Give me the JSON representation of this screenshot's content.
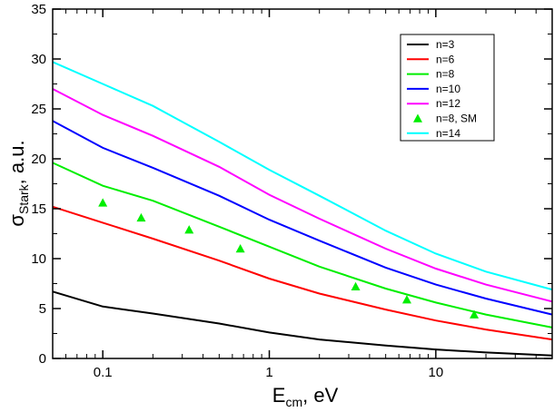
{
  "chart_data": {
    "type": "line",
    "title": "",
    "xlabel": {
      "main": "E",
      "sub": "cm",
      "suffix": ", eV"
    },
    "ylabel": {
      "main": "σ",
      "sub": "Stark",
      "suffix": ", a.u."
    },
    "xscale": "log",
    "xlim": [
      0.05,
      50
    ],
    "ylim": [
      0,
      35
    ],
    "xticks": [
      {
        "value": 0.1,
        "label": "0.1"
      },
      {
        "value": 1,
        "label": "1"
      },
      {
        "value": 10,
        "label": "10"
      }
    ],
    "yticks": [
      {
        "value": 0,
        "label": "0"
      },
      {
        "value": 5,
        "label": "5"
      },
      {
        "value": 10,
        "label": "10"
      },
      {
        "value": 15,
        "label": "15"
      },
      {
        "value": 20,
        "label": "20"
      },
      {
        "value": 25,
        "label": "25"
      },
      {
        "value": 30,
        "label": "30"
      },
      {
        "value": 35,
        "label": "35"
      }
    ],
    "grid": false,
    "legend_position": "top-right",
    "series": [
      {
        "name": "n=3",
        "color": "#000000",
        "kind": "line",
        "x": [
          0.05,
          0.1,
          0.2,
          0.5,
          1,
          2,
          5,
          10,
          20,
          50
        ],
        "y": [
          6.7,
          5.2,
          4.5,
          3.5,
          2.6,
          1.9,
          1.3,
          0.9,
          0.6,
          0.3
        ]
      },
      {
        "name": "n=6",
        "color": "#ff0000",
        "kind": "line",
        "x": [
          0.05,
          0.1,
          0.2,
          0.5,
          1,
          2,
          5,
          10,
          20,
          50
        ],
        "y": [
          15.2,
          13.6,
          12.0,
          9.8,
          8.0,
          6.5,
          4.9,
          3.8,
          2.9,
          1.9
        ]
      },
      {
        "name": "n=8",
        "color": "#00ee00",
        "kind": "line",
        "x": [
          0.05,
          0.1,
          0.2,
          0.5,
          1,
          2,
          5,
          10,
          20,
          50
        ],
        "y": [
          19.6,
          17.3,
          15.8,
          13.2,
          11.2,
          9.2,
          7.0,
          5.6,
          4.4,
          3.1
        ]
      },
      {
        "name": "n=10",
        "color": "#0000ff",
        "kind": "line",
        "x": [
          0.05,
          0.1,
          0.2,
          0.5,
          1,
          2,
          5,
          10,
          20,
          50
        ],
        "y": [
          23.8,
          21.1,
          19.1,
          16.3,
          13.9,
          11.8,
          9.1,
          7.4,
          6.0,
          4.4
        ]
      },
      {
        "name": "n=12",
        "color": "#ff00ff",
        "kind": "line",
        "x": [
          0.05,
          0.1,
          0.2,
          0.5,
          1,
          2,
          5,
          10,
          20,
          50
        ],
        "y": [
          27.0,
          24.4,
          22.3,
          19.2,
          16.4,
          14.0,
          11.0,
          9.0,
          7.4,
          5.7
        ]
      },
      {
        "name": "n=8, SM",
        "color": "#00ee00",
        "kind": "markers",
        "x": [
          0.1,
          0.17,
          0.33,
          0.67,
          3.3,
          6.7,
          17
        ],
        "y": [
          15.6,
          14.1,
          12.9,
          11.0,
          7.2,
          5.9,
          4.4
        ]
      },
      {
        "name": "n=14",
        "color": "#00ffff",
        "kind": "line",
        "x": [
          0.05,
          0.1,
          0.2,
          0.5,
          1,
          2,
          5,
          10,
          20,
          50
        ],
        "y": [
          29.7,
          27.5,
          25.3,
          21.7,
          18.9,
          16.3,
          12.8,
          10.5,
          8.7,
          6.9
        ]
      }
    ]
  }
}
